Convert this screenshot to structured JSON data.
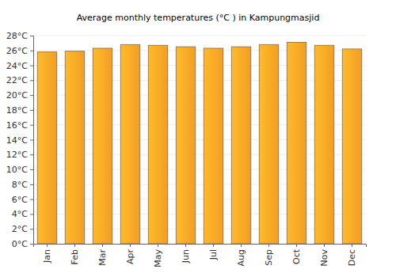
{
  "chart_data": {
    "type": "bar",
    "title": "Average monthly temperatures (°C ) in Kampungmasjid",
    "categories": [
      "Jan",
      "Feb",
      "Mar",
      "Apr",
      "May",
      "Jun",
      "Jul",
      "Aug",
      "Sep",
      "Oct",
      "Nov",
      "Dec"
    ],
    "values": [
      25.8,
      25.9,
      26.3,
      26.8,
      26.7,
      26.5,
      26.3,
      26.5,
      26.8,
      27.1,
      26.7,
      26.2
    ],
    "color": "#ffa726",
    "ylim": [
      0,
      28
    ],
    "yticks": [
      {
        "value": 0,
        "label": "0°C"
      },
      {
        "value": 2,
        "label": "2°C"
      },
      {
        "value": 4,
        "label": "4°C"
      },
      {
        "value": 6,
        "label": "6°C"
      },
      {
        "value": 8,
        "label": "8°C"
      },
      {
        "value": 10,
        "label": "10°C"
      },
      {
        "value": 12,
        "label": "12°C"
      },
      {
        "value": 14,
        "label": "14°C"
      },
      {
        "value": 16,
        "label": "16°C"
      },
      {
        "value": 18,
        "label": "18°C"
      },
      {
        "value": 20,
        "label": "20°C"
      },
      {
        "value": 22,
        "label": "22°C"
      },
      {
        "value": 24,
        "label": "24°C"
      },
      {
        "value": 26,
        "label": "26°C"
      },
      {
        "value": 28,
        "label": "28°C"
      }
    ],
    "grid": true
  }
}
